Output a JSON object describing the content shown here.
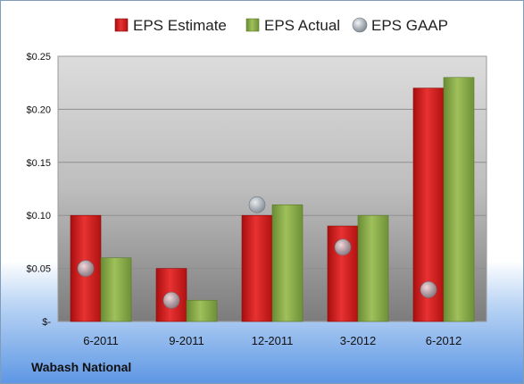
{
  "company_label": "Wabash National",
  "chart_data": {
    "type": "bar",
    "categories": [
      "6-2011",
      "9-2011",
      "12-2011",
      "3-2012",
      "6-2012"
    ],
    "series": [
      {
        "name": "EPS Estimate",
        "kind": "bar",
        "color": "#d42020",
        "values": [
          0.1,
          0.05,
          0.1,
          0.09,
          0.22
        ]
      },
      {
        "name": "EPS Actual",
        "kind": "bar",
        "color": "#8aac4c",
        "values": [
          0.06,
          0.02,
          0.11,
          0.1,
          0.23
        ]
      },
      {
        "name": "EPS GAAP",
        "kind": "marker",
        "color": "#9aa4ae",
        "values": [
          0.05,
          0.02,
          0.11,
          0.07,
          0.03
        ]
      }
    ],
    "y_ticks": [
      "$-",
      "$0.05",
      "$0.10",
      "$0.15",
      "$0.20",
      "$0.25"
    ],
    "ylim": [
      0,
      0.25
    ],
    "grid": true,
    "legend": "top"
  }
}
